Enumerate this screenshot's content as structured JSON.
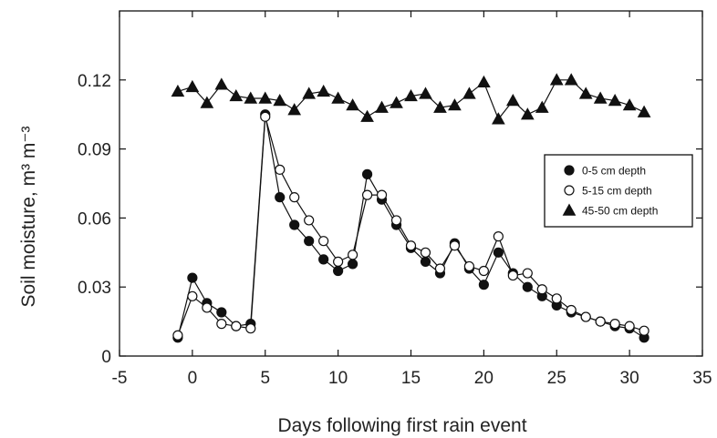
{
  "chart_data": {
    "type": "line",
    "title": "",
    "xlabel": "Days following first  rain event",
    "ylabel": "Soil moisture, m³ m⁻³",
    "xlim": [
      -5,
      35
    ],
    "ylim": [
      0,
      0.15
    ],
    "xticks": [
      -5,
      0,
      5,
      10,
      15,
      20,
      25,
      30,
      35
    ],
    "xtick_labels": [
      "-5",
      "0",
      "5",
      "10",
      "15",
      "20",
      "25",
      "30",
      "35"
    ],
    "yticks": [
      0,
      0.03,
      0.06,
      0.09,
      0.12
    ],
    "ytick_labels": [
      "0",
      "0.03",
      "0.06",
      "0.09",
      "0.12"
    ],
    "grid": false,
    "legend_position": "right",
    "series": [
      {
        "name": "0-5 cm depth",
        "marker": "filled-circle",
        "x": [
          -1,
          0,
          1,
          2,
          3,
          4,
          5,
          6,
          7,
          8,
          9,
          10,
          11,
          12,
          13,
          14,
          15,
          16,
          17,
          18,
          19,
          20,
          21,
          22,
          23,
          24,
          25,
          26,
          27,
          28,
          29,
          30,
          31
        ],
        "y": [
          0.008,
          0.034,
          0.023,
          0.019,
          0.013,
          0.014,
          0.105,
          0.069,
          0.057,
          0.05,
          0.042,
          0.037,
          0.04,
          0.079,
          0.068,
          0.057,
          0.047,
          0.041,
          0.036,
          0.049,
          0.038,
          0.031,
          0.045,
          0.036,
          0.03,
          0.026,
          0.022,
          0.019,
          0.017,
          0.015,
          0.013,
          0.012,
          0.008
        ]
      },
      {
        "name": "5-15 cm depth",
        "marker": "open-circle",
        "x": [
          -1,
          0,
          1,
          2,
          3,
          4,
          5,
          6,
          7,
          8,
          9,
          10,
          11,
          12,
          13,
          14,
          15,
          16,
          17,
          18,
          19,
          20,
          21,
          22,
          23,
          24,
          25,
          26,
          27,
          28,
          29,
          30,
          31
        ],
        "y": [
          0.009,
          0.026,
          0.021,
          0.014,
          0.013,
          0.012,
          0.104,
          0.081,
          0.069,
          0.059,
          0.05,
          0.041,
          0.044,
          0.07,
          0.07,
          0.059,
          0.048,
          0.045,
          0.038,
          0.048,
          0.039,
          0.037,
          0.052,
          0.035,
          0.036,
          0.029,
          0.025,
          0.02,
          0.017,
          0.015,
          0.014,
          0.013,
          0.011
        ]
      },
      {
        "name": "45-50 cm depth",
        "marker": "filled-triangle",
        "x": [
          -1,
          0,
          1,
          2,
          3,
          4,
          5,
          6,
          7,
          8,
          9,
          10,
          11,
          12,
          13,
          14,
          15,
          16,
          17,
          18,
          19,
          20,
          21,
          22,
          23,
          24,
          25,
          26,
          27,
          28,
          29,
          30,
          31
        ],
        "y": [
          0.115,
          0.117,
          0.11,
          0.118,
          0.113,
          0.112,
          0.112,
          0.111,
          0.107,
          0.114,
          0.115,
          0.112,
          0.109,
          0.104,
          0.108,
          0.11,
          0.113,
          0.114,
          0.108,
          0.109,
          0.114,
          0.119,
          0.103,
          0.111,
          0.105,
          0.108,
          0.12,
          0.12,
          0.114,
          0.112,
          0.111,
          0.109,
          0.106
        ]
      }
    ]
  }
}
